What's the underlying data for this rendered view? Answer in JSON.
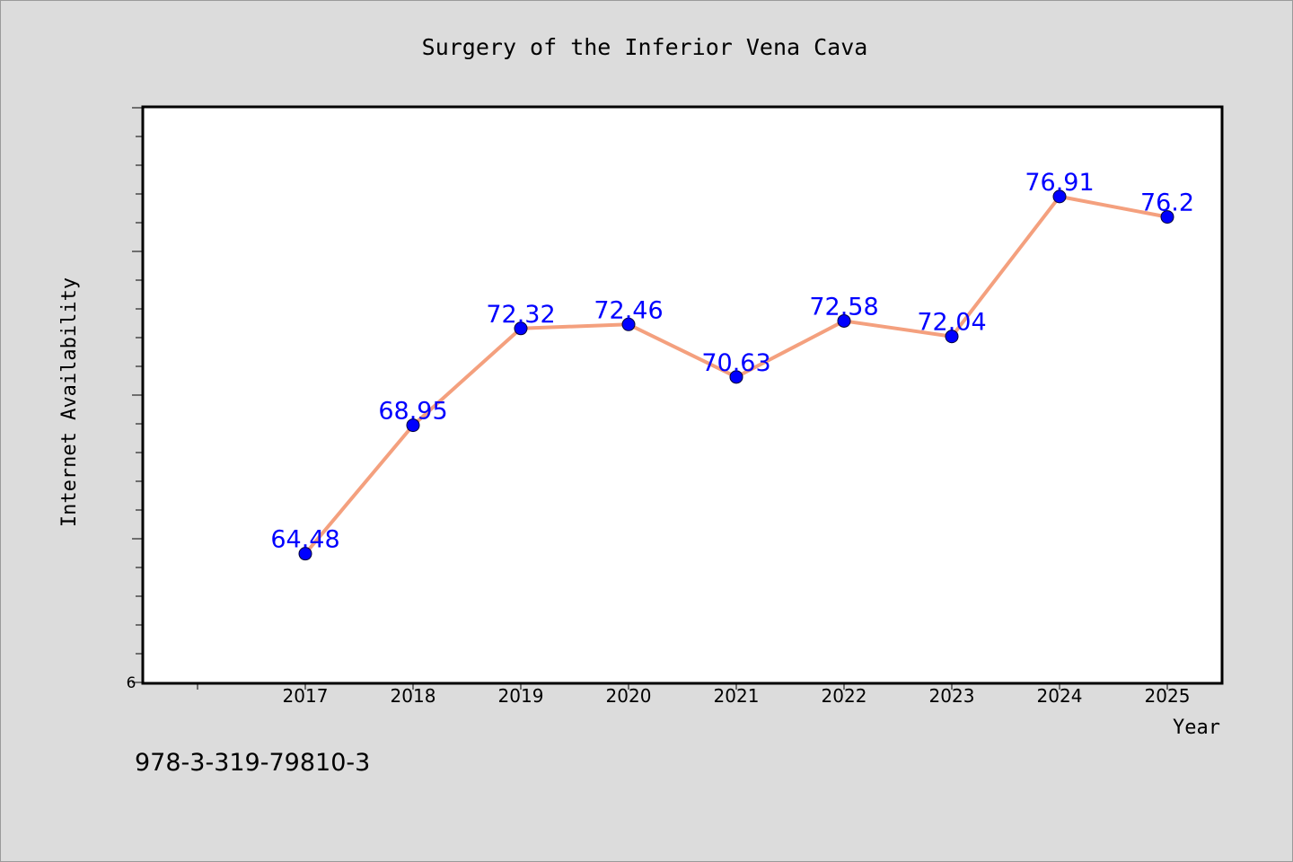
{
  "chart_data": {
    "type": "line",
    "title": "Surgery of the Inferior Vena Cava",
    "xlabel": "Year",
    "ylabel": "Internet Availability",
    "x": [
      "2017",
      "2018",
      "2019",
      "2020",
      "2021",
      "2022",
      "2023",
      "2024",
      "2025"
    ],
    "values": [
      64.48,
      68.95,
      72.32,
      72.46,
      70.63,
      72.58,
      72.04,
      76.91,
      76.2
    ],
    "value_labels": [
      "64.48",
      "68.95",
      "72.32",
      "72.46",
      "70.63",
      "72.58",
      "72.04",
      "76.91",
      "76.2"
    ],
    "ylim": [
      60,
      80
    ],
    "y_tick_label": "6",
    "grid": false,
    "legend": "none",
    "colors": {
      "line": "#f4a07e",
      "marker": "#0000ff",
      "value_label": "#0000ff",
      "background": "#dcdcdc",
      "plot_area": "#ffffff"
    }
  },
  "caption": "978-3-319-79810-3"
}
